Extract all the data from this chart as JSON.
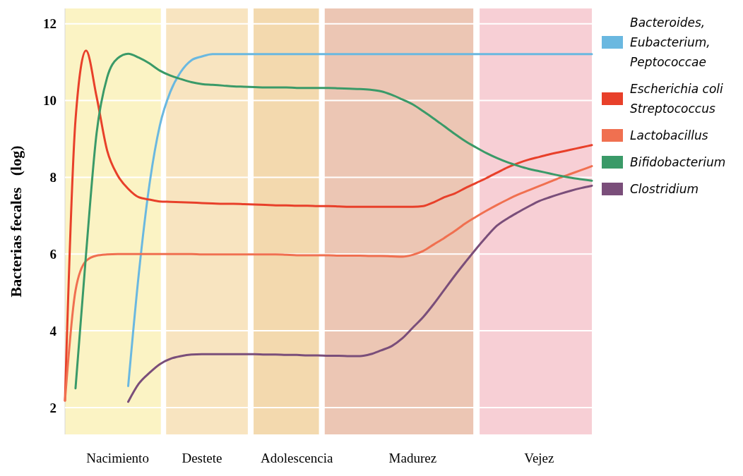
{
  "chart_data": {
    "type": "line",
    "ylabel": "Bacterias fecales   (log)",
    "categories": [
      null,
      null,
      null,
      null,
      null,
      "Nacimiento",
      null,
      null,
      null,
      null,
      null,
      null,
      null,
      "Destete",
      null,
      null,
      null,
      null,
      null,
      null,
      null,
      null,
      "Adolescencia",
      null,
      null,
      null,
      null,
      null,
      null,
      null,
      null,
      null,
      null,
      "Madurez",
      null,
      null,
      null,
      null,
      null,
      null,
      null,
      null,
      null,
      null,
      null,
      "Vejez",
      null,
      null,
      null,
      null,
      null
    ],
    "ylim": [
      1.3,
      12.4
    ],
    "yticks": [
      2,
      4,
      6,
      8,
      10,
      12
    ],
    "grid": "y",
    "legend": "right",
    "marker": "none",
    "line_style": "solid",
    "series": [
      {
        "name": "Bacteroides, Eubacterium, Peptococcae",
        "color": "#6ab8e0",
        "values": [
          null,
          null,
          null,
          null,
          null,
          null,
          2.56,
          5.47,
          7.78,
          9.35,
          10.23,
          10.75,
          11.05,
          11.15,
          11.21,
          11.21,
          11.21,
          11.21,
          11.21,
          11.21,
          11.21,
          11.21,
          11.21,
          11.21,
          11.21,
          11.21,
          11.21,
          11.21,
          11.21,
          11.21,
          11.21,
          11.21,
          11.21,
          11.21,
          11.21,
          11.21,
          11.21,
          11.21,
          11.21,
          11.21,
          11.21,
          11.21,
          11.21,
          11.21,
          11.21,
          11.21,
          11.21,
          11.21,
          11.21,
          11.21,
          11.21
        ]
      },
      {
        "name": "Escherichia coli Streptococcus",
        "color": "#e8402a",
        "values": [
          2.18,
          9.5,
          11.3,
          10.1,
          8.7,
          8.05,
          7.7,
          7.48,
          7.42,
          7.37,
          7.36,
          7.35,
          7.34,
          7.33,
          7.32,
          7.31,
          7.31,
          7.3,
          7.29,
          7.28,
          7.27,
          7.27,
          7.26,
          7.26,
          7.25,
          7.25,
          7.24,
          7.23,
          7.23,
          7.23,
          7.23,
          7.23,
          7.23,
          7.23,
          7.25,
          7.35,
          7.48,
          7.58,
          7.72,
          7.85,
          7.98,
          8.12,
          8.26,
          8.37,
          8.46,
          8.53,
          8.6,
          8.66,
          8.72,
          8.78,
          8.84
        ]
      },
      {
        "name": "Lactobacillus",
        "color": "#f07050",
        "values": [
          2.18,
          5.05,
          5.82,
          5.96,
          5.99,
          6.0,
          6.0,
          6.0,
          6.0,
          6.0,
          6.0,
          6.0,
          6.0,
          5.99,
          5.99,
          5.99,
          5.99,
          5.99,
          5.99,
          5.99,
          5.99,
          5.98,
          5.97,
          5.97,
          5.97,
          5.97,
          5.96,
          5.96,
          5.96,
          5.95,
          5.95,
          5.94,
          5.93,
          5.98,
          6.08,
          6.25,
          6.42,
          6.6,
          6.8,
          6.97,
          7.13,
          7.28,
          7.42,
          7.55,
          7.66,
          7.77,
          7.88,
          7.99,
          8.09,
          8.19,
          8.29
        ]
      },
      {
        "name": "Bifidobacterium",
        "color": "#3a9a68",
        "values": [
          null,
          2.5,
          6.0,
          9.15,
          10.6,
          11.1,
          11.22,
          11.12,
          10.97,
          10.78,
          10.65,
          10.56,
          10.48,
          10.43,
          10.41,
          10.39,
          10.37,
          10.36,
          10.35,
          10.34,
          10.34,
          10.34,
          10.33,
          10.33,
          10.33,
          10.33,
          10.32,
          10.31,
          10.3,
          10.28,
          10.24,
          10.15,
          10.03,
          9.9,
          9.72,
          9.53,
          9.33,
          9.13,
          8.94,
          8.78,
          8.63,
          8.5,
          8.39,
          8.3,
          8.22,
          8.16,
          8.1,
          8.04,
          7.99,
          7.95,
          7.91
        ]
      },
      {
        "name": "Clostridium",
        "color": "#7a4e7a",
        "values": [
          null,
          null,
          null,
          null,
          null,
          null,
          2.15,
          2.62,
          2.9,
          3.13,
          3.27,
          3.34,
          3.38,
          3.39,
          3.39,
          3.39,
          3.39,
          3.39,
          3.39,
          3.38,
          3.38,
          3.37,
          3.37,
          3.36,
          3.36,
          3.35,
          3.35,
          3.34,
          3.34,
          3.39,
          3.49,
          3.6,
          3.8,
          4.08,
          4.36,
          4.7,
          5.07,
          5.44,
          5.79,
          6.13,
          6.45,
          6.74,
          6.93,
          7.09,
          7.24,
          7.38,
          7.48,
          7.57,
          7.65,
          7.72,
          7.78
        ]
      }
    ]
  }
}
